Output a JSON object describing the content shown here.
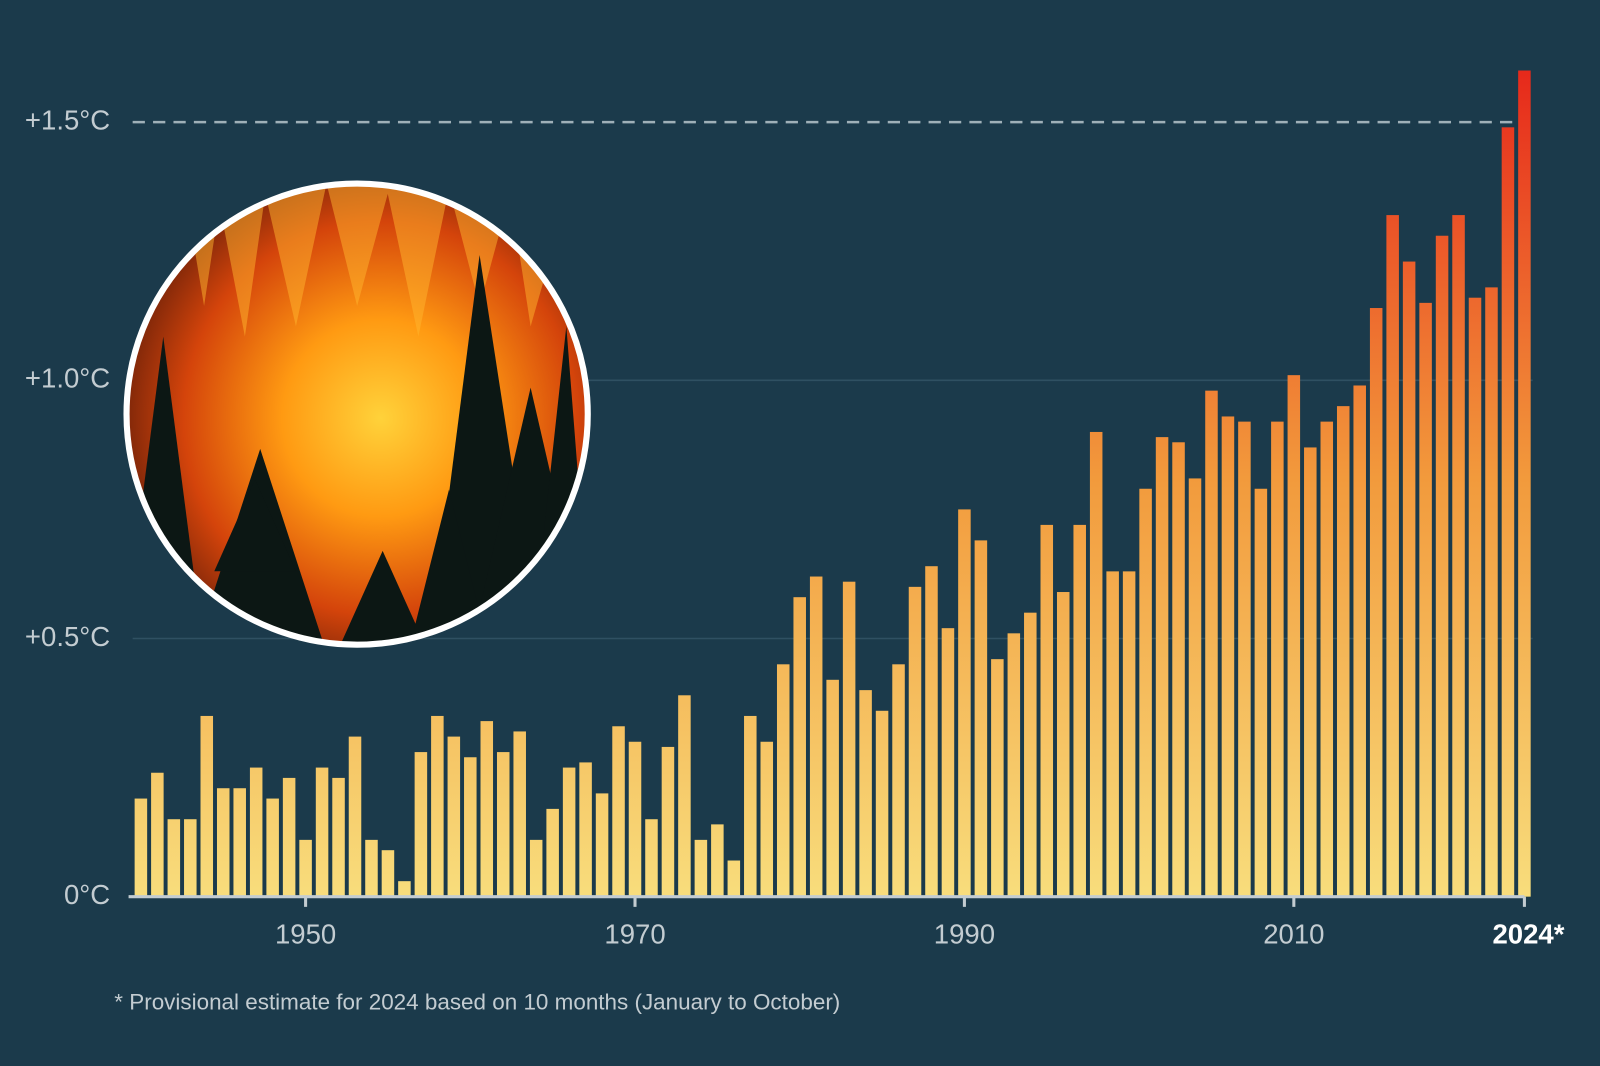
{
  "chart_data": {
    "type": "bar",
    "x": [
      1940,
      1941,
      1942,
      1943,
      1944,
      1945,
      1946,
      1947,
      1948,
      1949,
      1950,
      1951,
      1952,
      1953,
      1954,
      1955,
      1956,
      1957,
      1958,
      1959,
      1960,
      1961,
      1962,
      1963,
      1964,
      1965,
      1966,
      1967,
      1968,
      1969,
      1970,
      1971,
      1972,
      1973,
      1974,
      1975,
      1976,
      1977,
      1978,
      1979,
      1980,
      1981,
      1982,
      1983,
      1984,
      1985,
      1986,
      1987,
      1988,
      1989,
      1990,
      1991,
      1992,
      1993,
      1994,
      1995,
      1996,
      1997,
      1998,
      1999,
      2000,
      2001,
      2002,
      2003,
      2004,
      2005,
      2006,
      2007,
      2008,
      2009,
      2010,
      2011,
      2012,
      2013,
      2014,
      2015,
      2016,
      2017,
      2018,
      2019,
      2020,
      2021,
      2022,
      2023,
      2024
    ],
    "values": [
      0.19,
      0.24,
      0.15,
      0.15,
      0.35,
      0.21,
      0.21,
      0.25,
      0.19,
      0.23,
      0.11,
      0.25,
      0.23,
      0.31,
      0.11,
      0.09,
      0.03,
      0.28,
      0.35,
      0.31,
      0.27,
      0.34,
      0.28,
      0.32,
      0.11,
      0.17,
      0.25,
      0.26,
      0.2,
      0.33,
      0.3,
      0.15,
      0.29,
      0.39,
      0.11,
      0.14,
      0.07,
      0.35,
      0.3,
      0.45,
      0.58,
      0.62,
      0.42,
      0.61,
      0.4,
      0.36,
      0.45,
      0.6,
      0.64,
      0.52,
      0.75,
      0.69,
      0.46,
      0.51,
      0.55,
      0.72,
      0.59,
      0.72,
      0.9,
      0.63,
      0.63,
      0.79,
      0.89,
      0.88,
      0.81,
      0.98,
      0.93,
      0.92,
      0.79,
      0.92,
      1.01,
      0.87,
      0.92,
      0.95,
      0.99,
      1.14,
      1.32,
      1.23,
      1.15,
      1.28,
      1.32,
      1.16,
      1.18,
      1.49,
      1.6
    ],
    "colors": [
      "#f8dd7c",
      "#f29a3c",
      "#e6261a"
    ],
    "xlim": [
      1939.5,
      2024.5
    ],
    "xticks": [
      1950,
      1970,
      1990,
      2010,
      {
        "value": 2024,
        "label": "2024*"
      }
    ],
    "ylim": [
      0,
      1.62
    ],
    "yticks": [
      {
        "value": 0,
        "label": "0°C"
      },
      {
        "value": 0.5,
        "label": "+0.5°C"
      },
      {
        "value": 1.0,
        "label": "+1.0°C"
      },
      {
        "value": 1.5,
        "label": "+1.5°C"
      }
    ],
    "threshold": 1.5,
    "grid": true,
    "footnote": "* Provisional estimate for 2024 based on 10 months (January to October)"
  }
}
